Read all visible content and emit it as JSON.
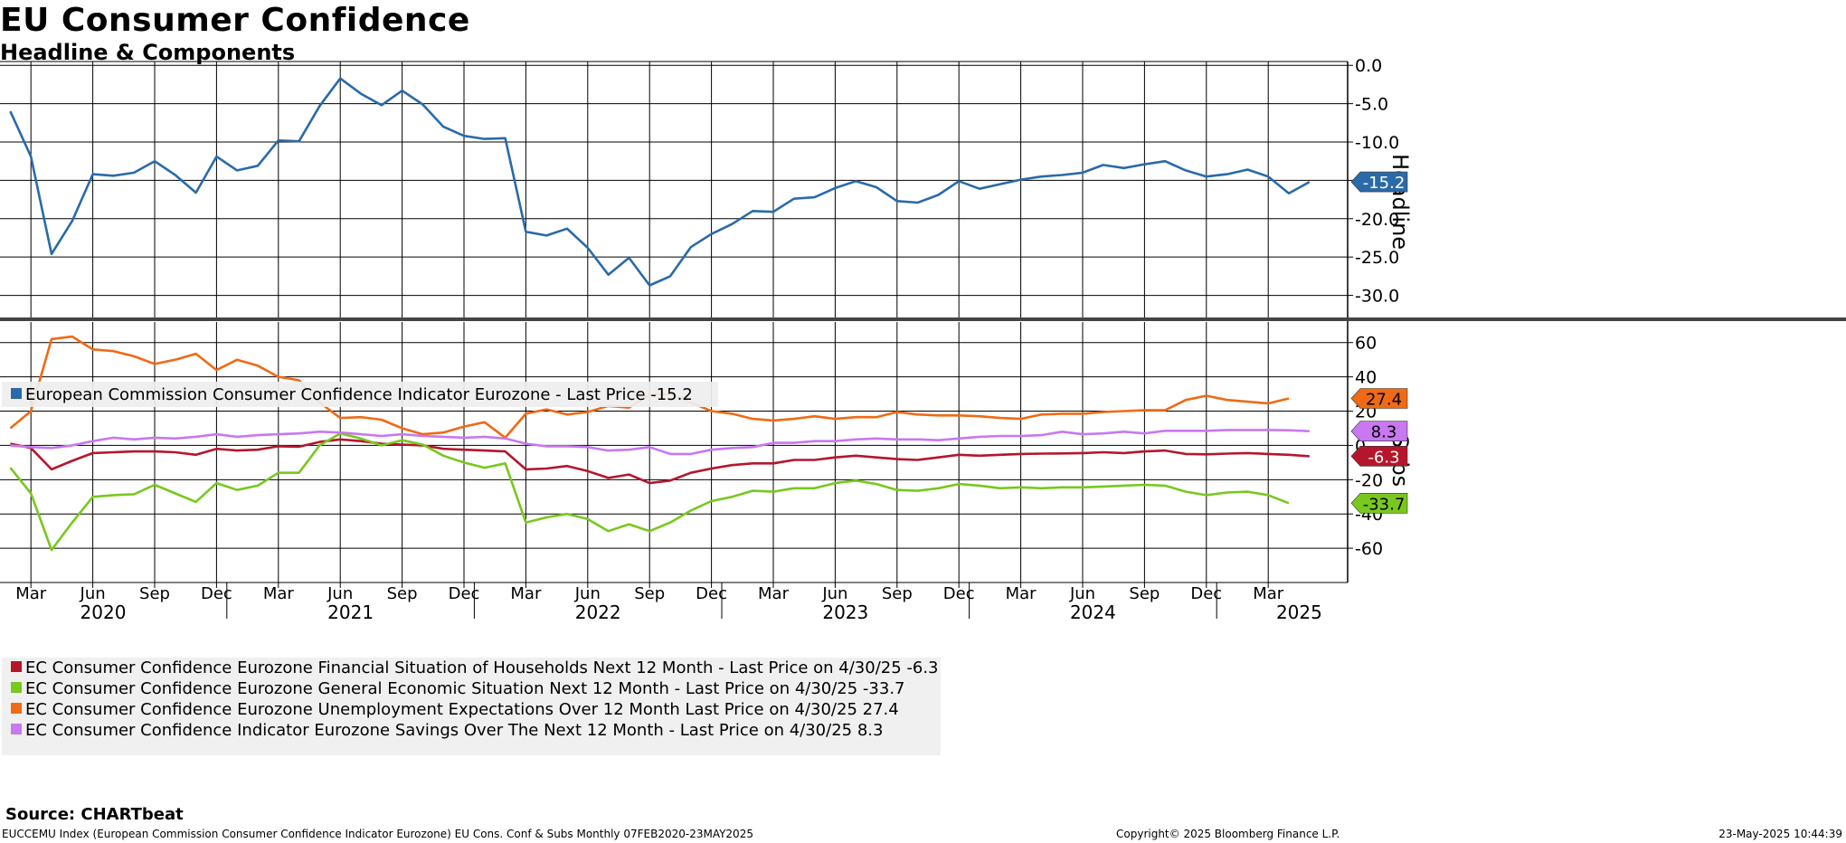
{
  "title": "EU Consumer Confidence",
  "subtitle": "Headline & Components",
  "source": "Source: CHARTbeat",
  "footer": {
    "left": "EUCCEMU Index (European Commission Consumer Confidence Indicator Eurozone) EU Cons. Conf & Subs  Monthly 07FEB2020-23MAY2025",
    "center": "Copyright© 2025 Bloomberg Finance L.P.",
    "right": "23-May-2025 10:44:39"
  },
  "colors": {
    "headline": "#2a6aa8",
    "financial": "#b5162c",
    "general": "#78c81e",
    "unemployment": "#f06a14",
    "savings": "#c878f0"
  },
  "chart_data": [
    {
      "type": "line",
      "panel": "top",
      "ylabel": "Headline",
      "ylim": [
        -33.0,
        0.5
      ],
      "yticks": [
        0.0,
        -5.0,
        -10.0,
        -15.0,
        -20.0,
        -25.0,
        -30.0
      ],
      "ytick_labels": [
        "0.0",
        "-5.0",
        "-10.0",
        "-15.0",
        "-20.0",
        "-25.0",
        "-30.0"
      ],
      "x": [
        "2020-02",
        "2020-03",
        "2020-04",
        "2020-05",
        "2020-06",
        "2020-07",
        "2020-08",
        "2020-09",
        "2020-10",
        "2020-11",
        "2020-12",
        "2021-01",
        "2021-02",
        "2021-03",
        "2021-04",
        "2021-05",
        "2021-06",
        "2021-07",
        "2021-08",
        "2021-09",
        "2021-10",
        "2021-11",
        "2021-12",
        "2022-01",
        "2022-02",
        "2022-03",
        "2022-04",
        "2022-05",
        "2022-06",
        "2022-07",
        "2022-08",
        "2022-09",
        "2022-10",
        "2022-11",
        "2022-12",
        "2023-01",
        "2023-02",
        "2023-03",
        "2023-04",
        "2023-05",
        "2023-06",
        "2023-07",
        "2023-08",
        "2023-09",
        "2023-10",
        "2023-11",
        "2023-12",
        "2024-01",
        "2024-02",
        "2024-03",
        "2024-04",
        "2024-05",
        "2024-06",
        "2024-07",
        "2024-08",
        "2024-09",
        "2024-10",
        "2024-11",
        "2024-12",
        "2025-01",
        "2025-02",
        "2025-03",
        "2025-04",
        "2025-05"
      ],
      "series": [
        {
          "name": "European Commission Consumer Confidence Indicator Eurozone",
          "legend": "European Commission Consumer Confidence Indicator Eurozone - Last Price -15.2",
          "color_key": "headline",
          "last": "-15.2",
          "values": [
            -6.0,
            -11.9,
            -24.6,
            -20.3,
            -14.2,
            -14.4,
            -14.0,
            -12.5,
            -14.3,
            -16.6,
            -11.9,
            -13.7,
            -13.1,
            -9.8,
            -9.9,
            -5.3,
            -1.7,
            -3.7,
            -5.2,
            -3.3,
            -5.1,
            -8.0,
            -9.2,
            -9.6,
            -9.5,
            -21.7,
            -22.2,
            -21.3,
            -23.8,
            -27.3,
            -25.1,
            -28.7,
            -27.5,
            -23.7,
            -22.0,
            -20.7,
            -19.0,
            -19.1,
            -17.4,
            -17.2,
            -16.0,
            -15.1,
            -15.9,
            -17.7,
            -17.9,
            -16.9,
            -15.1,
            -16.1,
            -15.5,
            -14.9,
            -14.5,
            -14.3,
            -14.0,
            -13.0,
            -13.4,
            -12.9,
            -12.5,
            -13.7,
            -14.5,
            -14.2,
            -13.6,
            -14.5,
            -16.7,
            -15.2
          ]
        }
      ]
    },
    {
      "type": "line",
      "panel": "bottom",
      "ylabel": "Subs",
      "ylim": [
        -80,
        72
      ],
      "yticks": [
        60,
        40,
        20,
        0,
        -20,
        -40,
        -60
      ],
      "ytick_labels": [
        "60",
        "40",
        "20",
        "0",
        "-20",
        "-40",
        "-60"
      ],
      "series": [
        {
          "name": "EC Consumer Confidence Eurozone Financial Situation of Households Next 12 Month",
          "legend": "EC Consumer Confidence Eurozone Financial Situation of Households Next 12 Month - Last Price on 4/30/25 -6.3",
          "color_key": "financial",
          "last": "-6.3",
          "values": [
            1.0,
            -1.5,
            -14.0,
            -9.0,
            -4.5,
            -4.0,
            -3.5,
            -3.5,
            -4.0,
            -5.5,
            -2.0,
            -3.0,
            -2.5,
            -0.5,
            -0.8,
            2.0,
            3.5,
            2.5,
            1.0,
            0.5,
            0.0,
            -2.0,
            -2.5,
            -3.0,
            -3.5,
            -14.0,
            -13.5,
            -12.0,
            -15.0,
            -19.0,
            -17.0,
            -22.0,
            -20.5,
            -16.0,
            -13.5,
            -11.5,
            -10.5,
            -10.5,
            -8.5,
            -8.5,
            -7.0,
            -6.0,
            -7.0,
            -8.0,
            -8.5,
            -7.0,
            -5.5,
            -6.0,
            -5.5,
            -5.0,
            -4.8,
            -4.7,
            -4.5,
            -4.0,
            -4.5,
            -3.5,
            -3.0,
            -5.0,
            -5.2,
            -4.8,
            -4.5,
            -5.0,
            -5.5,
            -6.3
          ]
        },
        {
          "name": "EC Consumer Confidence Eurozone General Economic Situation Next 12 Month",
          "legend": "EC Consumer Confidence Eurozone General Economic Situation Next 12 Month - Last Price on 4/30/25  -33.7",
          "color_key": "general",
          "last": "-33.7",
          "values": [
            -13.0,
            -28.0,
            -61.0,
            -45.0,
            -30.0,
            -29.0,
            -28.5,
            -23.0,
            -28.0,
            -33.0,
            -22.0,
            -26.0,
            -23.5,
            -16.0,
            -16.0,
            0.0,
            7.0,
            4.0,
            0.0,
            3.0,
            0.5,
            -6.0,
            -10.0,
            -13.0,
            -10.5,
            -45.0,
            -42.0,
            -40.0,
            -43.0,
            -50.0,
            -46.0,
            -50.0,
            -45.0,
            -38.0,
            -32.5,
            -30.0,
            -26.5,
            -27.0,
            -25.0,
            -25.0,
            -22.0,
            -20.5,
            -22.5,
            -26.0,
            -26.5,
            -25.0,
            -22.5,
            -23.5,
            -25.0,
            -24.5,
            -25.0,
            -24.5,
            -24.5,
            -24.0,
            -23.5,
            -23.0,
            -23.5,
            -27.0,
            -29.0,
            -27.5,
            -27.0,
            -29.0,
            -33.7
          ]
        },
        {
          "name": "EC Consumer Confidence Eurozone Unemployment Expectations Over 12 Month",
          "legend": "EC Consumer Confidence Eurozone Unemployment Expectations Over 12 Month  Last Price on 4/30/25 27.4",
          "color_key": "unemployment",
          "last": "27.4",
          "values": [
            10.0,
            20.0,
            62.0,
            63.5,
            56.0,
            55.0,
            52.0,
            47.5,
            50.0,
            53.5,
            44.0,
            50.0,
            46.5,
            40.0,
            38.0,
            25.0,
            16.0,
            16.5,
            15.0,
            10.0,
            6.5,
            7.5,
            11.0,
            13.5,
            4.5,
            18.5,
            21.0,
            18.0,
            19.5,
            23.0,
            22.0,
            29.5,
            30.0,
            25.0,
            20.0,
            18.5,
            15.5,
            14.5,
            15.5,
            17.0,
            15.5,
            16.5,
            16.5,
            19.5,
            18.0,
            17.5,
            17.5,
            17.0,
            16.0,
            15.5,
            18.0,
            18.5,
            18.5,
            19.5,
            20.0,
            20.5,
            20.5,
            26.5,
            29.0,
            26.5,
            25.5,
            24.5,
            27.4
          ]
        },
        {
          "name": "EC Consumer Confidence Indicator Eurozone Savings Over The Next 12 Month",
          "legend": "EC Consumer Confidence Indicator Eurozone Savings Over The Next 12 Month - Last Price on 4/30/25  8.3",
          "color_key": "savings",
          "last": "8.3",
          "values": [
            0.0,
            -1.0,
            -1.5,
            0.0,
            2.5,
            4.5,
            3.5,
            4.5,
            4.0,
            5.0,
            6.5,
            5.0,
            6.0,
            6.5,
            7.0,
            8.0,
            7.5,
            6.5,
            5.5,
            6.5,
            5.5,
            5.0,
            4.5,
            5.0,
            4.0,
            1.0,
            -0.5,
            -0.5,
            -1.0,
            -3.0,
            -2.5,
            -1.0,
            -5.0,
            -5.0,
            -2.5,
            -1.5,
            -1.0,
            1.5,
            1.5,
            2.5,
            2.5,
            3.5,
            4.0,
            3.5,
            3.5,
            3.0,
            4.0,
            5.0,
            5.5,
            5.5,
            6.0,
            8.0,
            6.5,
            7.0,
            8.0,
            7.0,
            8.5,
            8.5,
            8.5,
            9.0,
            9.0,
            9.0,
            8.8,
            8.3
          ]
        }
      ]
    }
  ],
  "x_axis": {
    "month_labels": [
      "Mar",
      "Jun",
      "Sep",
      "Dec",
      "Mar",
      "Jun",
      "Sep",
      "Dec",
      "Mar",
      "Jun",
      "Sep",
      "Dec",
      "Mar",
      "Jun",
      "Sep",
      "Dec",
      "Mar",
      "Jun",
      "Sep",
      "Dec",
      "Mar"
    ],
    "month_index": [
      1,
      4,
      7,
      10,
      13,
      16,
      19,
      22,
      25,
      28,
      31,
      34,
      37,
      40,
      43,
      46,
      49,
      52,
      55,
      58,
      61
    ],
    "year_labels": [
      "2020",
      "2021",
      "2022",
      "2023",
      "2024",
      "2025"
    ],
    "year_center_index": [
      4.5,
      16.5,
      28.5,
      40.5,
      52.5,
      62.5
    ],
    "year_boundary_index": [
      10.5,
      22.5,
      34.5,
      46.5,
      58.5
    ]
  }
}
